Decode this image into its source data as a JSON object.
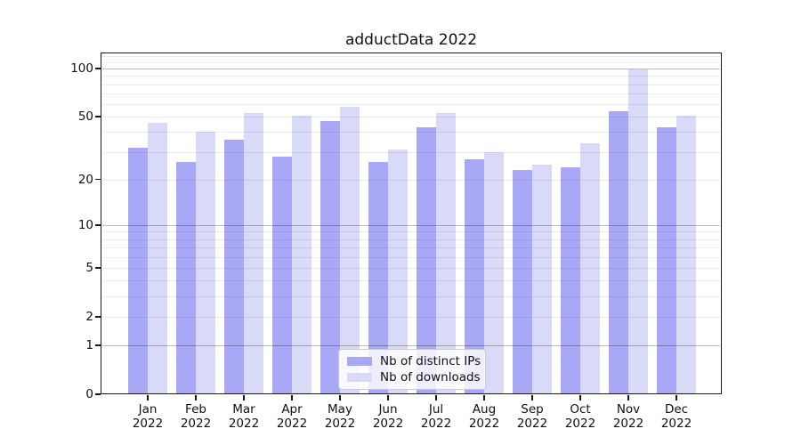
{
  "chart_data": {
    "type": "bar",
    "title": "adductData 2022",
    "categories": [
      "Jan",
      "Feb",
      "Mar",
      "Apr",
      "May",
      "Jun",
      "Jul",
      "Aug",
      "Sep",
      "Oct",
      "Nov",
      "Dec"
    ],
    "x_year_label": "2022",
    "series": [
      {
        "name": "Nb of distinct IPs",
        "color": "#a8a8f7",
        "values": [
          32,
          26,
          36,
          28,
          47,
          26,
          43,
          27,
          23,
          24,
          54,
          43
        ]
      },
      {
        "name": "Nb of downloads",
        "color": "#d9d9f8",
        "values": [
          46,
          40,
          53,
          51,
          58,
          31,
          53,
          30,
          25,
          34,
          99,
          51
        ]
      }
    ],
    "ylabel": "",
    "xlabel": "",
    "yscale": "symlog-log1p",
    "ylim": [
      0,
      125
    ],
    "y_tick_values": [
      0,
      1,
      2,
      5,
      10,
      20,
      50,
      100
    ],
    "y_tick_labels": [
      "0",
      "1",
      "2",
      "5",
      "10",
      "20",
      "50",
      "100"
    ],
    "major_grid_values": [
      1,
      10,
      100
    ],
    "minor_grid_values": [
      2,
      3,
      4,
      5,
      6,
      7,
      8,
      9,
      20,
      30,
      40,
      50,
      60,
      70,
      80,
      90,
      110,
      120
    ],
    "grid": true,
    "legend_position": "lower center",
    "colors": {
      "axis": "#1a1a1a",
      "text": "#111111",
      "background": "#ffffff"
    }
  }
}
